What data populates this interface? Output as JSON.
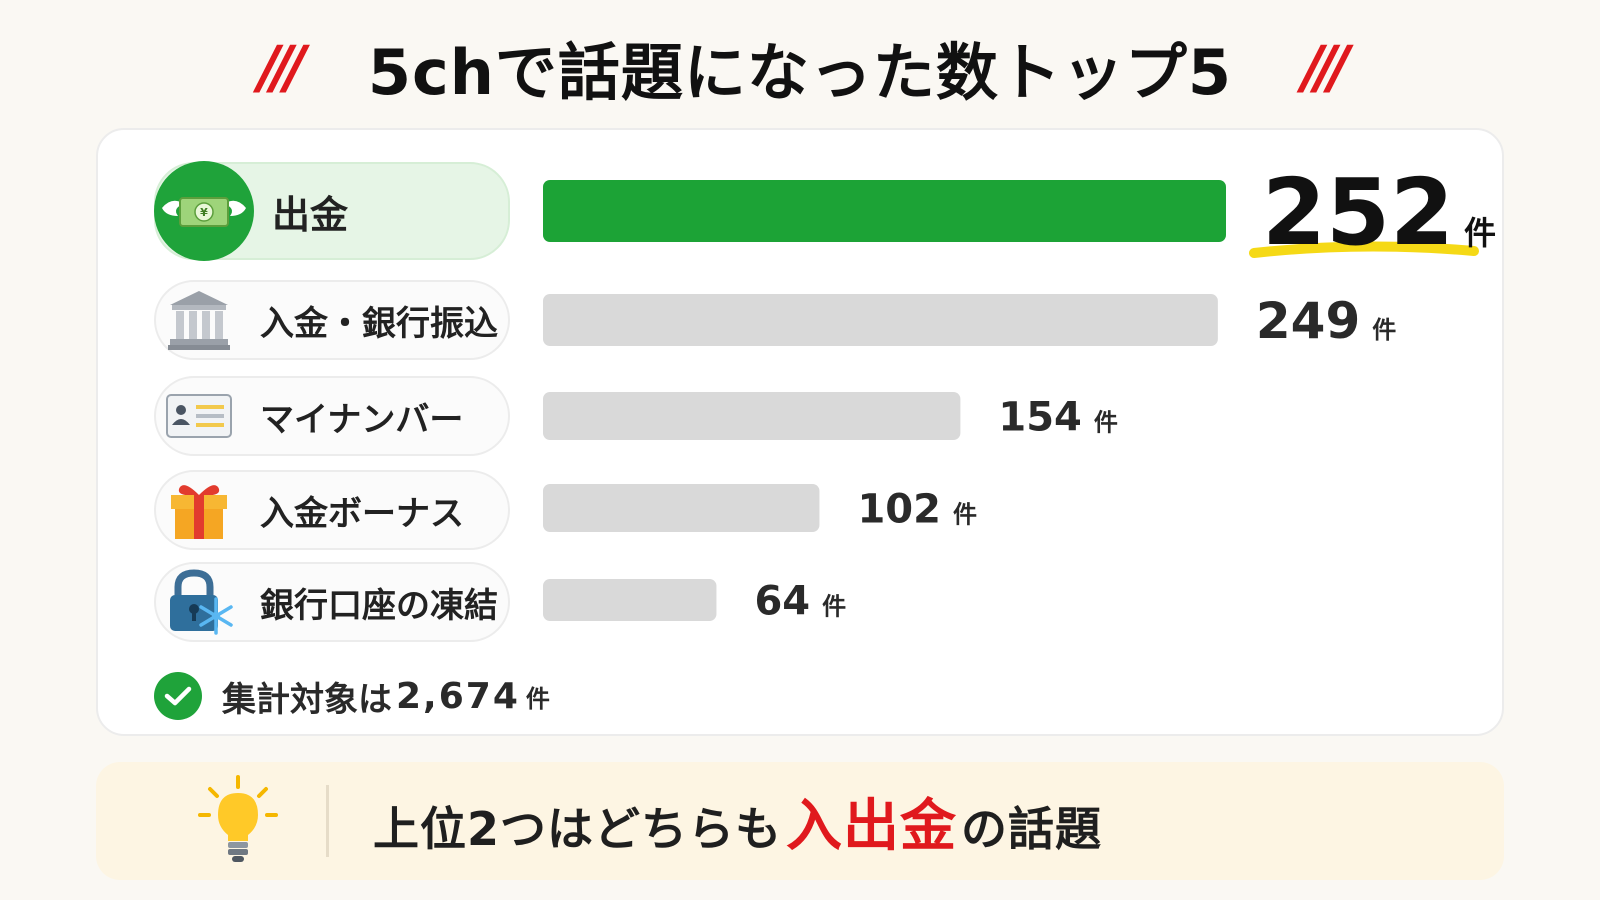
{
  "header": {
    "title": "5chで話題になった数トップ5",
    "slash_left": "///",
    "slash_right": "///"
  },
  "chart_data": {
    "type": "bar",
    "orientation": "horizontal",
    "title": "5chで話題になった数トップ5",
    "categories": [
      "出金",
      "入金・銀行振込",
      "マイナンバー",
      "入金ボーナス",
      "銀行口座の凍結"
    ],
    "values": [
      252,
      249,
      154,
      102,
      64
    ],
    "value_labels": [
      "252",
      "249",
      "154",
      "102",
      "64"
    ],
    "unit": "件",
    "icons": [
      "money-with-wings-icon",
      "bank-icon",
      "id-card-icon",
      "gift-icon",
      "frozen-lock-icon"
    ],
    "highlight_index": 0,
    "colors": {
      "highlight": "#1ca336",
      "bar": "#d9d9d9",
      "underline": "#f5d916"
    },
    "grid": false,
    "legend": "none"
  },
  "summary": {
    "text": "集計対象は",
    "value": "2,674",
    "unit": "件"
  },
  "note": {
    "prefix": "上位2つはどちらも",
    "emphasis": "入出金",
    "suffix": "の話題",
    "icon": "light-bulb-icon"
  },
  "colors": {
    "accent_green": "#1fa33a",
    "accent_red": "#e0191d",
    "note_bg": "#fdf5e3",
    "bg": "#faf8f3"
  }
}
